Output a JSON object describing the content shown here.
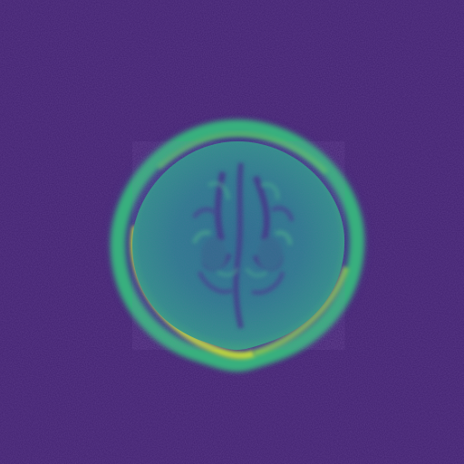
{
  "image": {
    "subject": "axial-brain-mri-slice",
    "colormap": "viridis",
    "colors": {
      "background": "#3f1f6e",
      "tissue_low": "#3b4f8f",
      "tissue_mid": "#2c8a8c",
      "tissue_high": "#38b17e",
      "rim_bright": "#c8e13a"
    }
  }
}
